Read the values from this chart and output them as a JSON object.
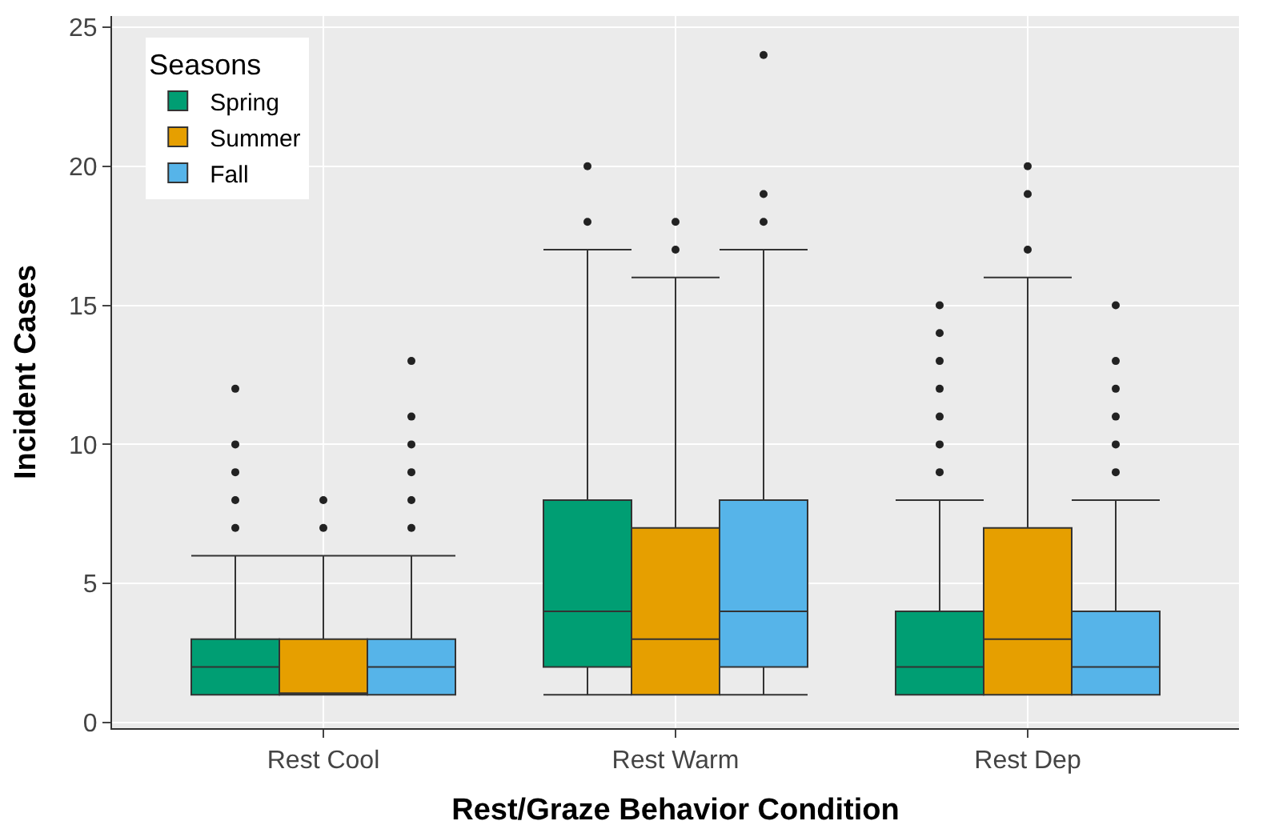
{
  "chart_data": {
    "type": "box",
    "xlabel": "Rest/Graze Behavior Condition",
    "ylabel": "Incident Cases",
    "legend_title": "Seasons",
    "legend": "top left",
    "grid": true,
    "categories": [
      "Rest Cool",
      "Rest Warm",
      "Rest Dep"
    ],
    "ylim": [
      -0.2,
      25.4
    ],
    "yticks": [
      0,
      5,
      10,
      15,
      20,
      25
    ],
    "series": [
      {
        "name": "Spring",
        "color": "#009e73",
        "boxes": [
          {
            "low": 1,
            "q1": 1,
            "median": 2,
            "q3": 3,
            "high": 6,
            "outliers": [
              7,
              8,
              9,
              10,
              12
            ]
          },
          {
            "low": 1,
            "q1": 2,
            "median": 4,
            "q3": 8,
            "high": 17,
            "outliers": [
              18,
              20
            ]
          },
          {
            "low": 1,
            "q1": 1,
            "median": 2,
            "q3": 4,
            "high": 8,
            "outliers": [
              9,
              10,
              11,
              12,
              13,
              14,
              15
            ]
          }
        ]
      },
      {
        "name": "Summer",
        "color": "#e69f00",
        "boxes": [
          {
            "low": 1,
            "q1": 1,
            "median": 1,
            "q3": 3,
            "high": 6,
            "outliers": [
              7,
              8
            ]
          },
          {
            "low": 1,
            "q1": 1,
            "median": 3,
            "q3": 7,
            "high": 16,
            "outliers": [
              17,
              18
            ]
          },
          {
            "low": 1,
            "q1": 1,
            "median": 3,
            "q3": 7,
            "high": 16,
            "outliers": [
              17,
              19,
              20
            ]
          }
        ]
      },
      {
        "name": "Fall",
        "color": "#56b4e9",
        "boxes": [
          {
            "low": 1,
            "q1": 1,
            "median": 2,
            "q3": 3,
            "high": 6,
            "outliers": [
              7,
              8,
              9,
              10,
              11,
              13
            ]
          },
          {
            "low": 1,
            "q1": 2,
            "median": 4,
            "q3": 8,
            "high": 17,
            "outliers": [
              18,
              19,
              24
            ]
          },
          {
            "low": 1,
            "q1": 1,
            "median": 2,
            "q3": 4,
            "high": 8,
            "outliers": [
              9,
              10,
              11,
              12,
              13,
              15
            ]
          }
        ]
      }
    ]
  }
}
